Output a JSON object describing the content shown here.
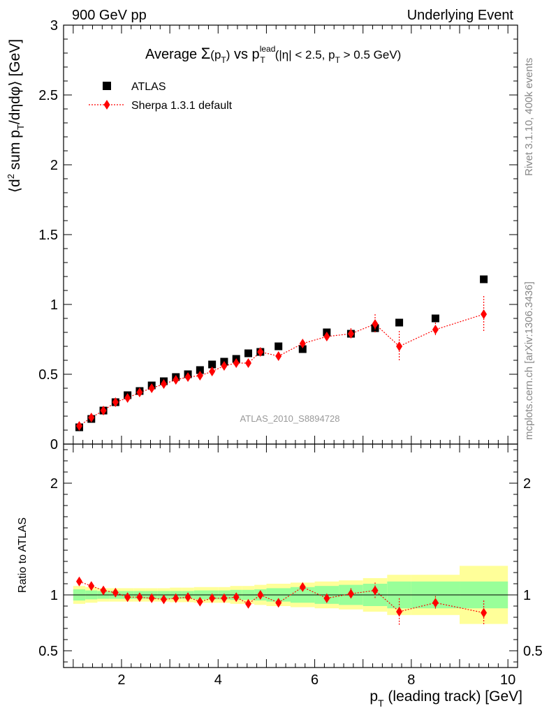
{
  "header": {
    "left": "900 GeV pp",
    "right": "Underlying Event"
  },
  "side": {
    "rivet": "Rivet 3.1.10,  400k events",
    "mcplots": "mcplots.cern.ch [arXiv:1306.3436]"
  },
  "analysis_tag": "ATLAS_2010_S8894728",
  "colors": {
    "data": "#000000",
    "mc": "#ff0000",
    "band_inner": "#99ff99",
    "band_outer": "#ffff99"
  },
  "chart_data": [
    {
      "type": "scatter",
      "title": "Average Σ(p_T) vs p_T^lead (|η| < 2.5, p_T > 0.5 GeV)",
      "xlabel": "p_T (leading track) [GeV]",
      "ylabel": "⟨d² sum p_T/dηdφ⟩ [GeV]",
      "xlim": [
        0.8,
        10.2
      ],
      "ylim": [
        0,
        3
      ],
      "xticks": [
        2,
        4,
        6,
        8,
        10
      ],
      "yticks": [
        0,
        0.5,
        1,
        1.5,
        2,
        2.5,
        3
      ],
      "ytick_labels": [
        "0",
        "0.5",
        "1",
        "1.5",
        "2",
        "2.5",
        "3"
      ],
      "legend_position": "top-left",
      "series": [
        {
          "name": "ATLAS",
          "x": [
            1.125,
            1.375,
            1.625,
            1.875,
            2.125,
            2.375,
            2.625,
            2.875,
            3.125,
            3.375,
            3.625,
            3.875,
            4.125,
            4.375,
            4.625,
            4.875,
            5.25,
            5.75,
            6.25,
            6.75,
            7.25,
            7.75,
            8.5,
            9.5
          ],
          "y": [
            0.12,
            0.18,
            0.24,
            0.3,
            0.35,
            0.38,
            0.42,
            0.45,
            0.48,
            0.5,
            0.53,
            0.57,
            0.59,
            0.61,
            0.65,
            0.66,
            0.7,
            0.68,
            0.8,
            0.79,
            0.83,
            0.87,
            0.9,
            1.18
          ]
        },
        {
          "name": "Sherpa 1.3.1 default",
          "x": [
            1.125,
            1.375,
            1.625,
            1.875,
            2.125,
            2.375,
            2.625,
            2.875,
            3.125,
            3.375,
            3.625,
            3.875,
            4.125,
            4.375,
            4.625,
            4.875,
            5.25,
            5.75,
            6.25,
            6.75,
            7.25,
            7.75,
            8.5,
            9.5
          ],
          "y": [
            0.13,
            0.19,
            0.24,
            0.3,
            0.33,
            0.37,
            0.4,
            0.43,
            0.46,
            0.48,
            0.49,
            0.52,
            0.56,
            0.58,
            0.58,
            0.66,
            0.63,
            0.72,
            0.77,
            0.79,
            0.86,
            0.7,
            0.82,
            0.93
          ],
          "yerr": [
            0.005,
            0.005,
            0.005,
            0.005,
            0.005,
            0.005,
            0.006,
            0.006,
            0.007,
            0.008,
            0.009,
            0.01,
            0.012,
            0.013,
            0.015,
            0.017,
            0.02,
            0.025,
            0.03,
            0.04,
            0.07,
            0.11,
            0.05,
            0.13
          ]
        }
      ]
    },
    {
      "type": "scatter",
      "title": "",
      "xlabel": "p_T (leading track) [GeV]",
      "ylabel": "Ratio to ATLAS",
      "xlim": [
        0.8,
        10.2
      ],
      "ylim": [
        0.35,
        2.35
      ],
      "xticks": [
        2,
        4,
        6,
        8,
        10
      ],
      "yticks": [
        0.5,
        1,
        2
      ],
      "ytick_labels": [
        "0.5",
        "1",
        "2"
      ],
      "bands": {
        "edges": [
          1.0,
          1.25,
          1.5,
          1.75,
          2.0,
          2.25,
          2.5,
          2.75,
          3.0,
          3.25,
          3.5,
          3.75,
          4.0,
          4.25,
          4.5,
          4.75,
          5.0,
          5.5,
          6.0,
          6.5,
          7.0,
          7.5,
          8.0,
          9.0,
          10.0
        ],
        "inner": [
          0.05,
          0.04,
          0.035,
          0.035,
          0.035,
          0.035,
          0.035,
          0.035,
          0.035,
          0.035,
          0.04,
          0.04,
          0.04,
          0.045,
          0.045,
          0.05,
          0.06,
          0.07,
          0.08,
          0.09,
          0.1,
          0.12,
          0.12,
          0.12
        ],
        "outer": [
          0.08,
          0.07,
          0.06,
          0.06,
          0.06,
          0.06,
          0.06,
          0.06,
          0.065,
          0.065,
          0.07,
          0.07,
          0.07,
          0.08,
          0.08,
          0.09,
          0.1,
          0.11,
          0.12,
          0.13,
          0.15,
          0.18,
          0.18,
          0.26
        ]
      },
      "series": [
        {
          "name": "Sherpa 1.3.1 default",
          "x": [
            1.125,
            1.375,
            1.625,
            1.875,
            2.125,
            2.375,
            2.625,
            2.875,
            3.125,
            3.375,
            3.625,
            3.875,
            4.125,
            4.375,
            4.625,
            4.875,
            5.25,
            5.75,
            6.25,
            6.75,
            7.25,
            7.75,
            8.5,
            9.5
          ],
          "y": [
            1.12,
            1.08,
            1.04,
            1.02,
            0.98,
            0.98,
            0.97,
            0.96,
            0.97,
            0.98,
            0.94,
            0.97,
            0.97,
            0.98,
            0.92,
            1.0,
            0.93,
            1.07,
            0.97,
            1.01,
            1.04,
            0.85,
            0.93,
            0.84
          ],
          "yerr": [
            0.01,
            0.01,
            0.01,
            0.01,
            0.01,
            0.01,
            0.01,
            0.01,
            0.01,
            0.01,
            0.01,
            0.01,
            0.015,
            0.015,
            0.02,
            0.025,
            0.025,
            0.03,
            0.04,
            0.05,
            0.07,
            0.12,
            0.06,
            0.11
          ]
        }
      ]
    }
  ]
}
